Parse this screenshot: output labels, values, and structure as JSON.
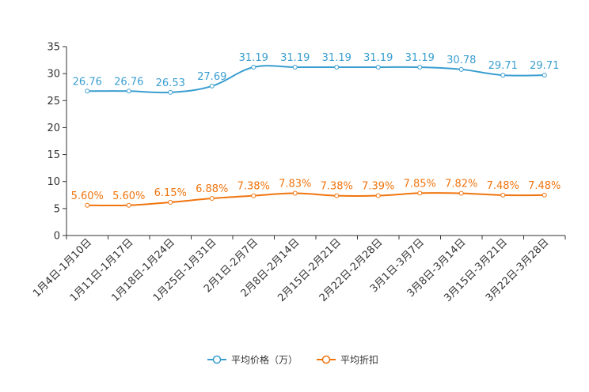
{
  "chart_data": {
    "type": "line",
    "title": "",
    "xlabel": "",
    "ylabel": "",
    "ylim": [
      0,
      35
    ],
    "yticks": [
      0,
      5,
      10,
      15,
      20,
      25,
      30,
      35
    ],
    "grid": false,
    "legend_position": "bottom-center",
    "categories": [
      "1月4日-1月10日",
      "1月11日-1月17日",
      "1月18日-1月24日",
      "1月25日-1月31日",
      "2月1日-2月7日",
      "2月8日-2月14日",
      "2月15日-2月21日",
      "2月22日-2月28日",
      "3月1日-3月7日",
      "3月8日-3月14日",
      "3月15日-3月21日",
      "3月22日-3月28日"
    ],
    "series": [
      {
        "name": "平均价格（万）",
        "color": "#3a9ed0",
        "values": [
          26.76,
          26.76,
          26.53,
          27.69,
          31.19,
          31.19,
          31.19,
          31.19,
          31.19,
          30.78,
          29.71,
          29.71
        ],
        "labels": [
          "26.76",
          "26.76",
          "26.53",
          "27.69",
          "31.19",
          "31.19",
          "31.19",
          "31.19",
          "31.19",
          "30.78",
          "29.71",
          "29.71"
        ]
      },
      {
        "name": "平均折扣",
        "color": "#f0750f",
        "values": [
          5.6,
          5.6,
          6.15,
          6.88,
          7.38,
          7.83,
          7.38,
          7.39,
          7.85,
          7.82,
          7.48,
          7.48
        ],
        "labels": [
          "5.60%",
          "5.60%",
          "6.15%",
          "6.88%",
          "7.38%",
          "7.83%",
          "7.38%",
          "7.39%",
          "7.85%",
          "7.82%",
          "7.48%",
          "7.48%"
        ]
      }
    ]
  }
}
